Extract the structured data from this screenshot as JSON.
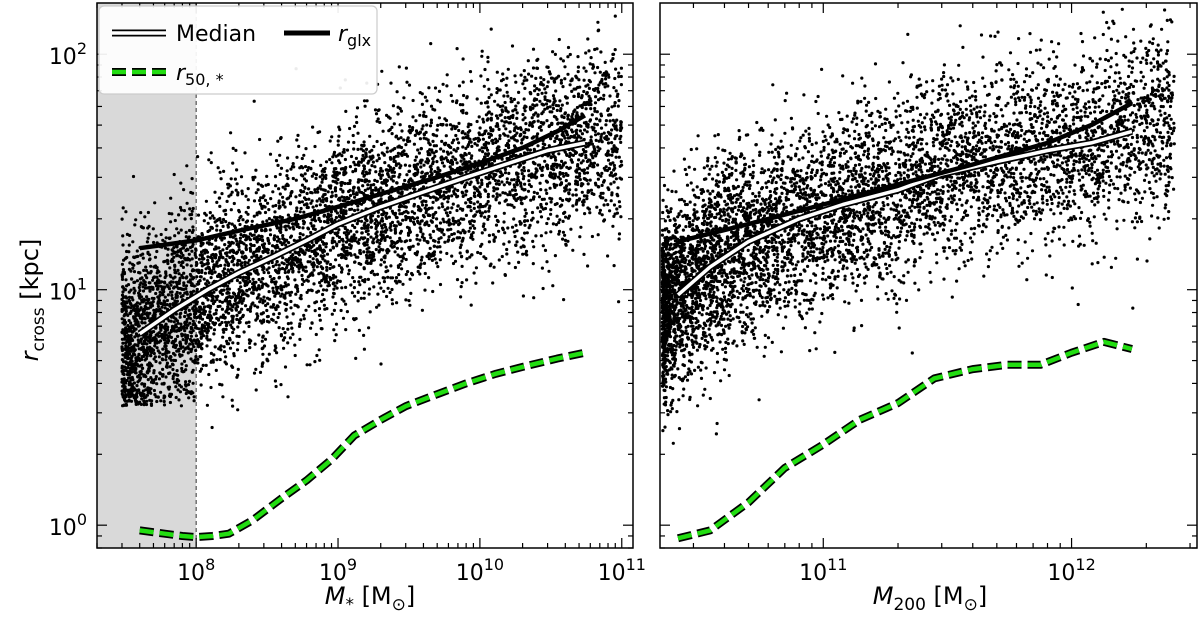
{
  "chart_data": [
    {
      "panel": "left",
      "type": "scatter",
      "xscale": "log",
      "yscale": "log",
      "xlim": [
        20000000.0,
        120000000000.0
      ],
      "ylim": [
        0.8,
        165
      ],
      "xlabel": {
        "main": "M",
        "sub": "*",
        "unit": " [M",
        "unit_sub": "⊙",
        "unit_end": "]"
      },
      "ylabel": {
        "main": "r",
        "sub": "cross",
        "unit": " [kpc]"
      },
      "x_ticks": [
        {
          "value": 100000000.0,
          "base": "10",
          "exp": "8"
        },
        {
          "value": 1000000000.0,
          "base": "10",
          "exp": "9"
        },
        {
          "value": 10000000000.0,
          "base": "10",
          "exp": "10"
        },
        {
          "value": 100000000000.0,
          "base": "10",
          "exp": "11"
        }
      ],
      "y_ticks": [
        {
          "value": 1,
          "base": "10",
          "exp": "0"
        },
        {
          "value": 10,
          "base": "10",
          "exp": "1"
        },
        {
          "value": 100,
          "base": "10",
          "exp": "2"
        }
      ],
      "shaded_region": {
        "x": [
          20000000.0,
          100000000.0
        ],
        "color": "#d9d9d9",
        "boundary_line": 100000000.0
      },
      "legend": {
        "placement": "top-left",
        "entries": [
          {
            "label": "Median",
            "style": "white-line-black-edge"
          },
          {
            "label_main": "r",
            "label_sub": "glx",
            "style": "black-line"
          },
          {
            "label_main": "r",
            "label_sub": "50, *",
            "style": "green-dashed"
          }
        ]
      },
      "series": [
        {
          "name": "Median",
          "x": [
            40000000.0,
            70000000.0,
            120000000.0,
            200000000.0,
            350000000.0,
            600000000.0,
            1000000000.0,
            2000000000.0,
            4000000000.0,
            8000000000.0,
            15000000000.0,
            30000000000.0,
            55000000000.0
          ],
          "y": [
            6.5,
            8.2,
            10.0,
            11.8,
            13.8,
            16.2,
            19.0,
            22.5,
            26.0,
            30.0,
            34.0,
            39.0,
            42.0
          ]
        },
        {
          "name": "r_glx",
          "x": [
            40000000.0,
            100000000.0,
            200000000.0,
            500000000.0,
            1000000000.0,
            2000000000.0,
            5000000000.0,
            10000000000.0,
            20000000000.0,
            35000000000.0,
            55000000000.0
          ],
          "y": [
            15.0,
            16.2,
            17.8,
            20.0,
            22.5,
            25.5,
            30.0,
            34.5,
            40.0,
            47.0,
            55.0
          ]
        },
        {
          "name": "r_50,*",
          "x": [
            40000000.0,
            60000000.0,
            80000000.0,
            100000000.0,
            130000000.0,
            170000000.0,
            250000000.0,
            400000000.0,
            600000000.0,
            900000000.0,
            1300000000.0,
            2000000000.0,
            3000000000.0,
            5000000000.0,
            8000000000.0,
            13000000000.0,
            20000000000.0,
            35000000000.0,
            55000000000.0
          ],
          "y": [
            0.95,
            0.92,
            0.9,
            0.89,
            0.9,
            0.92,
            1.05,
            1.3,
            1.55,
            1.9,
            2.4,
            2.8,
            3.2,
            3.6,
            4.0,
            4.4,
            4.7,
            5.1,
            5.4
          ]
        }
      ],
      "scatter_points": {
        "count": 6000,
        "color": "#000000"
      }
    },
    {
      "panel": "right",
      "type": "scatter",
      "xscale": "log",
      "yscale": "log",
      "xlim": [
        22000000000.0,
        3200000000000.0
      ],
      "ylim": [
        0.8,
        165
      ],
      "xlabel": {
        "main": "M",
        "sub": "200",
        "unit": " [M",
        "unit_sub": "⊙",
        "unit_end": "]"
      },
      "x_ticks": [
        {
          "value": 100000000000.0,
          "base": "10",
          "exp": "11"
        },
        {
          "value": 1000000000000.0,
          "base": "10",
          "exp": "12"
        }
      ],
      "series": [
        {
          "name": "Median",
          "x": [
            26000000000.0,
            35000000000.0,
            50000000000.0,
            80000000000.0,
            120000000000.0,
            200000000000.0,
            300000000000.0,
            500000000000.0,
            800000000000.0,
            1200000000000.0,
            1750000000000.0
          ],
          "y": [
            9.5,
            12.5,
            16.0,
            20.0,
            23.0,
            26.5,
            31.0,
            35.0,
            39.0,
            42.0,
            47.0
          ]
        },
        {
          "name": "r_glx",
          "x": [
            26000000000.0,
            50000000000.0,
            100000000000.0,
            200000000000.0,
            400000000000.0,
            800000000000.0,
            1200000000000.0,
            1750000000000.0
          ],
          "y": [
            16.0,
            19.0,
            23.0,
            28.0,
            34.0,
            42.0,
            50.0,
            62.0
          ]
        },
        {
          "name": "r_50,*",
          "x": [
            26000000000.0,
            35000000000.0,
            50000000000.0,
            70000000000.0,
            100000000000.0,
            140000000000.0,
            200000000000.0,
            280000000000.0,
            400000000000.0,
            550000000000.0,
            750000000000.0,
            1000000000000.0,
            1350000000000.0,
            1750000000000.0
          ],
          "y": [
            0.88,
            0.95,
            1.25,
            1.75,
            2.2,
            2.8,
            3.3,
            4.2,
            4.6,
            4.8,
            4.8,
            5.4,
            6.0,
            5.6
          ]
        }
      ],
      "scatter_points": {
        "count": 6000,
        "color": "#000000"
      }
    }
  ]
}
